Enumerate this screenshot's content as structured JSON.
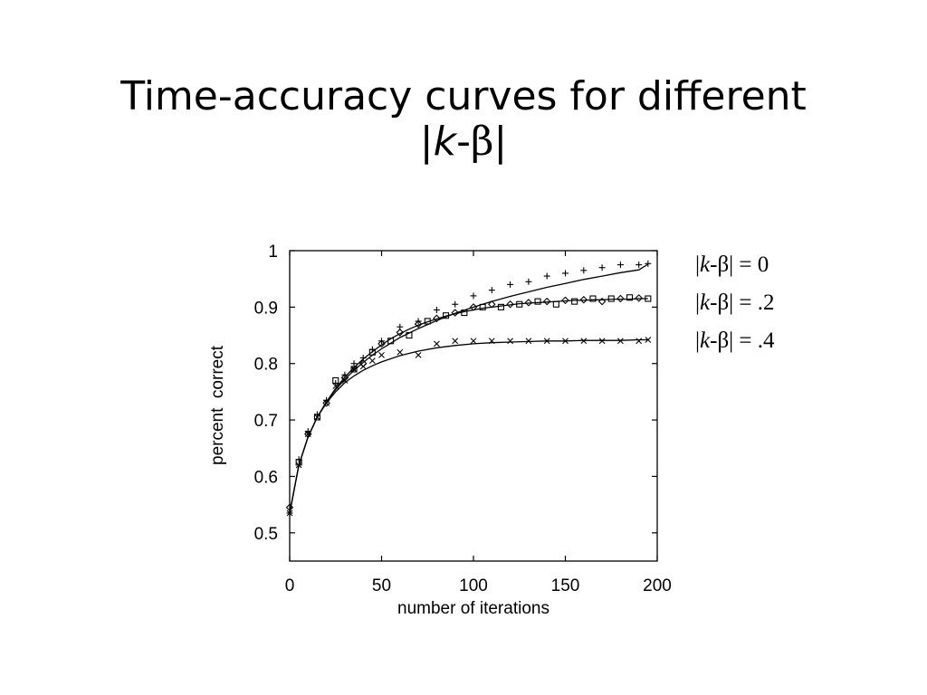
{
  "slide": {
    "title_line1": "Time-accuracy curves for different",
    "title_line2": {
      "open": "|",
      "k": "k",
      "dash": "-",
      "beta": "β",
      "close": "|"
    }
  },
  "chart_data": {
    "type": "scatter",
    "xlabel": "number of iterations",
    "ylabel": "percent  correct",
    "xlim": [
      0,
      200
    ],
    "ylim": [
      0.45,
      1.0
    ],
    "xticks": [
      0,
      50,
      100,
      150,
      200
    ],
    "yticks": [
      1,
      0.9,
      0.8,
      0.7,
      0.6,
      0.5
    ],
    "ytick_labels": [
      "1",
      "0.9",
      "0.8",
      "0.7",
      "0.6",
      "0.5"
    ],
    "grid": false,
    "legend_position": "right, outside plot",
    "series": [
      {
        "marker": "plus",
        "legend": {
          "open": "|",
          "k": "k",
          "mid": "-β| = ",
          "value": " 0"
        },
        "x": [
          0,
          5,
          10,
          15,
          20,
          25,
          30,
          35,
          40,
          45,
          50,
          60,
          70,
          80,
          90,
          100,
          110,
          120,
          130,
          140,
          150,
          160,
          170,
          180,
          190,
          195
        ],
        "y": [
          0.535,
          0.63,
          0.68,
          0.71,
          0.735,
          0.765,
          0.78,
          0.8,
          0.81,
          0.825,
          0.84,
          0.865,
          0.875,
          0.895,
          0.905,
          0.92,
          0.93,
          0.94,
          0.945,
          0.955,
          0.96,
          0.965,
          0.97,
          0.975,
          0.975,
          0.977
        ],
        "fit_y": [
          0.535,
          0.62,
          0.67,
          0.705,
          0.732,
          0.754,
          0.772,
          0.788,
          0.802,
          0.815,
          0.826,
          0.846,
          0.862,
          0.876,
          0.889,
          0.9,
          0.91,
          0.919,
          0.927,
          0.935,
          0.942,
          0.949,
          0.955,
          0.961,
          0.966,
          0.976
        ]
      },
      {
        "marker": "diamond-square",
        "legend": {
          "open": "|",
          "k": "k",
          "mid": "-β| = .2",
          "value": ""
        },
        "x": [
          0,
          5,
          10,
          15,
          20,
          25,
          30,
          35,
          40,
          45,
          50,
          55,
          60,
          65,
          70,
          75,
          80,
          85,
          90,
          95,
          100,
          105,
          110,
          115,
          120,
          125,
          130,
          135,
          140,
          145,
          150,
          155,
          160,
          165,
          170,
          175,
          180,
          185,
          190,
          195
        ],
        "y": [
          0.545,
          0.625,
          0.675,
          0.705,
          0.73,
          0.77,
          0.775,
          0.79,
          0.8,
          0.82,
          0.835,
          0.84,
          0.855,
          0.85,
          0.87,
          0.875,
          0.88,
          0.885,
          0.89,
          0.89,
          0.9,
          0.9,
          0.905,
          0.9,
          0.905,
          0.905,
          0.908,
          0.91,
          0.91,
          0.905,
          0.912,
          0.91,
          0.913,
          0.915,
          0.91,
          0.915,
          0.915,
          0.917,
          0.916,
          0.915
        ],
        "fit_y": [
          0.535,
          0.62,
          0.67,
          0.705,
          0.732,
          0.756,
          0.776,
          0.793,
          0.808,
          0.821,
          0.833,
          0.844,
          0.853,
          0.861,
          0.868,
          0.874,
          0.879,
          0.884,
          0.888,
          0.892,
          0.895,
          0.898,
          0.9,
          0.902,
          0.904,
          0.906,
          0.907,
          0.908,
          0.909,
          0.91,
          0.911,
          0.912,
          0.912,
          0.913,
          0.913,
          0.914,
          0.914,
          0.914,
          0.915,
          0.915
        ]
      },
      {
        "marker": "x",
        "legend": {
          "open": "|",
          "k": "k",
          "mid": "-β| = .4",
          "value": ""
        },
        "x": [
          0,
          5,
          10,
          15,
          20,
          25,
          30,
          35,
          40,
          45,
          50,
          60,
          70,
          80,
          90,
          100,
          110,
          120,
          130,
          140,
          150,
          160,
          170,
          180,
          190,
          195
        ],
        "y": [
          0.535,
          0.62,
          0.675,
          0.705,
          0.73,
          0.76,
          0.77,
          0.79,
          0.795,
          0.805,
          0.815,
          0.82,
          0.815,
          0.835,
          0.84,
          0.84,
          0.84,
          0.84,
          0.84,
          0.84,
          0.84,
          0.84,
          0.84,
          0.84,
          0.84,
          0.842
        ],
        "fit_y": [
          0.535,
          0.62,
          0.67,
          0.705,
          0.73,
          0.75,
          0.766,
          0.778,
          0.788,
          0.796,
          0.803,
          0.814,
          0.822,
          0.828,
          0.832,
          0.835,
          0.837,
          0.838,
          0.839,
          0.84,
          0.84,
          0.841,
          0.841,
          0.841,
          0.842,
          0.842
        ]
      }
    ]
  }
}
